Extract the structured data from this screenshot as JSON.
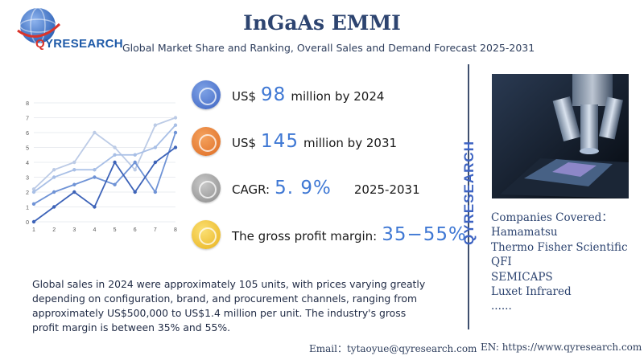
{
  "logo": {
    "text_q": "Q",
    "text_rest": "YRESEARCH"
  },
  "header": {
    "title": "InGaAs EMMI",
    "subtitle": "Global Market Share and Ranking, Overall Sales and Demand Forecast 2025-2031"
  },
  "stats": {
    "sales2024": {
      "prefix": "US$",
      "value": "98",
      "suffix": "million by 2024"
    },
    "sales2031": {
      "prefix": "US$",
      "value": "145",
      "suffix": "million by 2031"
    },
    "cagr": {
      "label": "CAGR:",
      "value": "5. 9%",
      "period": "2025-2031"
    },
    "margin": {
      "label": "The gross profit margin:",
      "value": "35−55%"
    }
  },
  "brand_vertical": "QYRESEARCH",
  "companies": {
    "heading": "Companies Covered：",
    "items": [
      "Hamamatsu",
      "Thermo Fisher Scientific",
      "QFI",
      "SEMICAPS",
      "Luxet Infrared",
      "......"
    ]
  },
  "description": "Global sales in 2024 were approximately 105 units, with prices varying greatly depending on configuration, brand, and procurement channels, ranging from approximately US$500,000 to US$1.4 million per unit. The industry's gross profit margin is between 35% and 55%.",
  "footer": {
    "email": "Email：tytaoyue@qyresearch.com",
    "website": "EN: https://www.qyresearch.com"
  },
  "colors": {
    "accent": "#3d63c2",
    "title": "#2d4470"
  },
  "chart_data": {
    "type": "line",
    "x": [
      1,
      2,
      3,
      4,
      5,
      6,
      7,
      8
    ],
    "ylim": [
      0,
      8
    ],
    "xticks": [
      "1",
      "2",
      "3",
      "4",
      "5",
      "6",
      "7",
      "8"
    ],
    "yticks": [
      "0",
      "1",
      "2",
      "3",
      "4",
      "5",
      "6",
      "7",
      "8"
    ],
    "grid": true,
    "series": [
      {
        "values": [
          2.2,
          3.5,
          4,
          6,
          5,
          3.5,
          6.5,
          7
        ],
        "color": "#bccbe6"
      },
      {
        "values": [
          2,
          3,
          3.5,
          3.5,
          4.5,
          4.5,
          5,
          6.5
        ],
        "color": "#a8bfe6"
      },
      {
        "values": [
          1.2,
          2,
          2.5,
          3,
          2.5,
          4,
          2,
          6
        ],
        "color": "#6f93d6"
      },
      {
        "values": [
          0,
          1,
          2,
          1,
          4,
          2,
          4,
          5
        ],
        "color": "#3d63b8"
      }
    ]
  }
}
